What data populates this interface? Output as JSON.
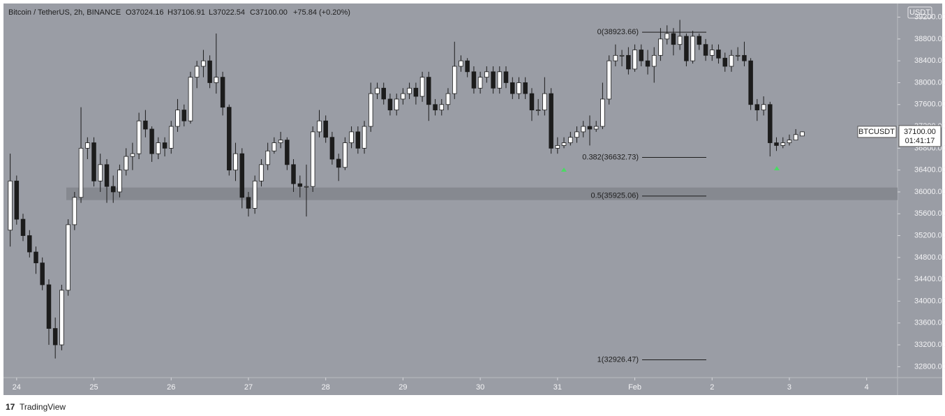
{
  "chart_data": {
    "type": "candlestick",
    "legend": {
      "symbol": "Bitcoin / TetherUS, 2h, BINANCE",
      "open": "O37024.16",
      "high": "H37106.91",
      "low": "L37022.54",
      "close": "C37100.00",
      "change": "+75.84 (+0.20%)"
    },
    "currency": "USDT",
    "price_tag": {
      "symbol": "BTCUSDT",
      "price": "37100.00",
      "countdown": "01:41:17"
    },
    "footer": "TradingView",
    "color_up": "#ffffff",
    "color_down": "#1c1c1c",
    "x": [
      23.917,
      24,
      24.083,
      24.167,
      24.25,
      24.333,
      24.417,
      24.5,
      24.583,
      24.667,
      24.75,
      24.833,
      24.917,
      25,
      25.083,
      25.167,
      25.25,
      25.333,
      25.417,
      25.5,
      25.583,
      25.667,
      25.75,
      25.833,
      25.917,
      26,
      26.083,
      26.167,
      26.25,
      26.333,
      26.417,
      26.5,
      26.583,
      26.667,
      26.75,
      26.833,
      26.917,
      27,
      27.083,
      27.167,
      27.25,
      27.333,
      27.417,
      27.5,
      27.583,
      27.667,
      27.75,
      27.833,
      27.917,
      28,
      28.083,
      28.167,
      28.25,
      28.333,
      28.417,
      28.5,
      28.583,
      28.667,
      28.75,
      28.833,
      28.917,
      29,
      29.083,
      29.167,
      29.25,
      29.333,
      29.417,
      29.5,
      29.583,
      29.667,
      29.75,
      29.833,
      29.917,
      30,
      30.083,
      30.167,
      30.25,
      30.333,
      30.417,
      30.5,
      30.583,
      30.667,
      30.75,
      30.833,
      30.917,
      31,
      31.083,
      31.167,
      31.25,
      31.333,
      31.417,
      31.5,
      31.583,
      31.667,
      31.75,
      31.833,
      31.917,
      32,
      32.083,
      32.167,
      32.25,
      32.333,
      32.417,
      32.5,
      32.583,
      32.667,
      32.75,
      32.833,
      32.917,
      33,
      33.083,
      33.167,
      33.25,
      33.333,
      33.417,
      33.5,
      33.583,
      33.667,
      33.75,
      33.833,
      33.917,
      34,
      34.083,
      34.167
    ],
    "open": [
      35300,
      36200,
      35500,
      35200,
      34900,
      34700,
      34300,
      33500,
      33200,
      34200,
      35400,
      35900,
      36800,
      36900,
      36200,
      36500,
      36100,
      36000,
      36400,
      36650,
      36700,
      37300,
      37150,
      36700,
      36900,
      36800,
      37200,
      37500,
      37300,
      38100,
      38300,
      38400,
      38000,
      38100,
      37550,
      36400,
      36700,
      35900,
      35700,
      36200,
      36500,
      36750,
      36900,
      36950,
      36500,
      36150,
      36100,
      36100,
      37100,
      37300,
      37000,
      36600,
      36450,
      36900,
      37100,
      36800,
      37200,
      37800,
      37900,
      37700,
      37500,
      37700,
      37800,
      37900,
      37750,
      38100,
      37600,
      37500,
      37600,
      37800,
      38300,
      38400,
      38200,
      37900,
      38100,
      38200,
      37900,
      38200,
      38000,
      37800,
      38000,
      37800,
      37500,
      37500,
      37800,
      36800,
      36850,
      36900,
      37000,
      37100,
      37200,
      37150,
      37200,
      37700,
      38400,
      38500,
      38500,
      38250,
      38600,
      38400,
      38300,
      38500,
      38800,
      38900,
      38700,
      38850,
      38400,
      38850,
      38700,
      38500,
      38600,
      38450,
      38300,
      38500,
      38500,
      38400,
      37600,
      37500,
      37600,
      36900,
      36850,
      36900,
      36950,
      37024.16
    ],
    "high": [
      36700,
      36300,
      35600,
      35300,
      35000,
      34800,
      34400,
      33700,
      34300,
      35500,
      36000,
      37550,
      37000,
      37000,
      36700,
      36600,
      36300,
      36500,
      36800,
      36900,
      37450,
      37500,
      37200,
      37000,
      37000,
      37300,
      37700,
      37600,
      38200,
      38400,
      38600,
      38500,
      38900,
      38200,
      37600,
      36900,
      36800,
      36000,
      36300,
      36600,
      36900,
      37000,
      37100,
      37000,
      36600,
      36300,
      36500,
      37200,
      37500,
      37400,
      37100,
      36700,
      37000,
      37200,
      37200,
      37300,
      38000,
      38000,
      38000,
      37800,
      37800,
      37900,
      38000,
      38000,
      38200,
      38200,
      37700,
      37700,
      37900,
      38750,
      38500,
      38450,
      38300,
      38200,
      38300,
      38300,
      38300,
      38300,
      38100,
      38100,
      38100,
      37900,
      37700,
      38100,
      37900,
      37000,
      37000,
      37100,
      37200,
      37300,
      37400,
      37300,
      38000,
      38500,
      38700,
      38600,
      38650,
      38700,
      38700,
      38600,
      38650,
      39000,
      39050,
      39000,
      39150,
      38900,
      38950,
      38900,
      38800,
      38700,
      38700,
      38550,
      38600,
      38650,
      38750,
      38450,
      37700,
      37750,
      37650,
      37000,
      37000,
      37050,
      37150,
      37106.91
    ],
    "low": [
      35000,
      35400,
      35100,
      34800,
      34500,
      34200,
      33200,
      32950,
      33100,
      34100,
      35300,
      35800,
      36600,
      36100,
      36000,
      35800,
      35800,
      35900,
      36300,
      36400,
      36600,
      37000,
      36550,
      36600,
      36650,
      36700,
      37100,
      37200,
      37250,
      37900,
      38100,
      37900,
      37800,
      37400,
      36300,
      36200,
      35700,
      35550,
      35600,
      36100,
      36400,
      36700,
      36800,
      36400,
      36000,
      35900,
      35550,
      36000,
      37000,
      36900,
      36500,
      36200,
      36400,
      36800,
      36700,
      36700,
      37100,
      37700,
      37600,
      37400,
      37400,
      37600,
      37700,
      37600,
      37650,
      37300,
      37400,
      37400,
      37500,
      37700,
      38200,
      38100,
      37800,
      37800,
      38000,
      37800,
      37800,
      37900,
      37700,
      37700,
      37700,
      37300,
      37400,
      37400,
      36700,
      36700,
      36800,
      36850,
      36900,
      37000,
      36850,
      37100,
      37150,
      37600,
      38300,
      38300,
      38150,
      38200,
      38300,
      38150,
      38000,
      38400,
      38700,
      38500,
      38600,
      38300,
      38350,
      38600,
      38400,
      38400,
      38350,
      38200,
      38200,
      38400,
      38300,
      37500,
      37300,
      37400,
      36650,
      36750,
      36800,
      36850,
      36950,
      37022.54
    ],
    "close": [
      36200,
      35500,
      35200,
      34900,
      34700,
      34300,
      33500,
      33200,
      34200,
      35400,
      35900,
      36800,
      36900,
      36200,
      36500,
      36100,
      36000,
      36400,
      36650,
      36700,
      37300,
      37150,
      36700,
      36900,
      36800,
      37200,
      37500,
      37300,
      38100,
      38300,
      38400,
      38000,
      38100,
      37550,
      36400,
      36700,
      35900,
      35700,
      36200,
      36500,
      36750,
      36900,
      36950,
      36500,
      36150,
      36100,
      36100,
      37100,
      37300,
      37000,
      36600,
      36450,
      36900,
      37100,
      36800,
      37200,
      37800,
      37900,
      37700,
      37500,
      37700,
      37800,
      37900,
      37750,
      38100,
      37600,
      37500,
      37600,
      37800,
      38300,
      38400,
      38200,
      37900,
      38100,
      38200,
      37900,
      38200,
      38000,
      37800,
      38000,
      37800,
      37500,
      37500,
      37800,
      36800,
      36850,
      36900,
      37000,
      37100,
      37200,
      37150,
      37200,
      37700,
      38400,
      38500,
      38500,
      38250,
      38600,
      38400,
      38300,
      38500,
      38800,
      38900,
      38700,
      38850,
      38400,
      38850,
      38700,
      38500,
      38600,
      38450,
      38300,
      38500,
      38500,
      38400,
      37600,
      37500,
      37600,
      36900,
      36850,
      36900,
      36950,
      37050,
      37100
    ],
    "fib_levels": [
      {
        "value": 38923.66,
        "label": "0(38923.66)"
      },
      {
        "value": 36632.73,
        "label": "0.382(36632.73)"
      },
      {
        "value": 35925.06,
        "label": "0.5(35925.06)"
      },
      {
        "value": 32926.47,
        "label": "1(32926.47)"
      }
    ],
    "support_zone": [
      35850,
      36080
    ],
    "xlim": [
      23.83,
      35.4
    ],
    "ylim": [
      32600,
      39450
    ],
    "xticks": [
      24,
      25,
      26,
      27,
      28,
      29,
      30,
      31,
      {
        "value": 32,
        "label": "Feb"
      },
      {
        "value": 33,
        "label": "2"
      },
      {
        "value": 34,
        "label": "3"
      },
      {
        "value": 35,
        "label": "4"
      }
    ],
    "yticks": [
      {
        "value": 39200,
        "label": "39200.00"
      },
      {
        "value": 38800,
        "label": "38800.00"
      },
      {
        "value": 38400,
        "label": "38400.00"
      },
      {
        "value": 38000,
        "label": "38000.00"
      },
      {
        "value": 37600,
        "label": "37600.00"
      },
      {
        "value": 37200,
        "label": "37200.00"
      },
      {
        "value": 36800,
        "label": "36800.00"
      },
      {
        "value": 36400,
        "label": "36400.00"
      },
      {
        "value": 36000,
        "label": "36000.00"
      },
      {
        "value": 35600,
        "label": "35600.00"
      },
      {
        "value": 35200,
        "label": "35200.00"
      },
      {
        "value": 34800,
        "label": "34800.00"
      },
      {
        "value": 34400,
        "label": "34400.00"
      },
      {
        "value": 34000,
        "label": "34000.00"
      },
      {
        "value": 33600,
        "label": "33600.00"
      },
      {
        "value": 33200,
        "label": "33200.00"
      },
      {
        "value": 32800,
        "label": "32800.00"
      }
    ],
    "grid": false
  }
}
